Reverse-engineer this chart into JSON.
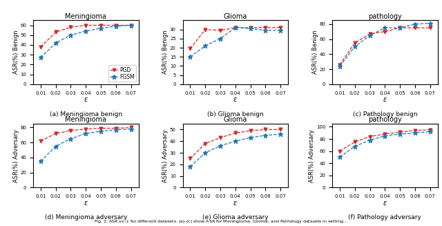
{
  "epsilon": [
    0.01,
    0.02,
    0.03,
    0.04,
    0.05,
    0.06,
    0.07
  ],
  "plots": {
    "meningioma_benign": {
      "title": "Meningioma",
      "ylabel": "ASR(%) Benign",
      "caption": "(a) Meningioma benign",
      "pgd": [
        38,
        53,
        58,
        60,
        60,
        60,
        60
      ],
      "fgsm": [
        27,
        42,
        50,
        54,
        57,
        59,
        60
      ]
    },
    "glioma_benign": {
      "title": "Glioma",
      "ylabel": "ASR(%) Benign",
      "caption": "(b) Glioma benign",
      "pgd": [
        19.5,
        30,
        29.5,
        31,
        31,
        31,
        31
      ],
      "fgsm": [
        15,
        21,
        25,
        31,
        30.5,
        29.5,
        29.5
      ]
    },
    "pathology_benign": {
      "title": "pathology",
      "ylabel": "ASR(%) Benign",
      "caption": "(c) Pathology benign",
      "pgd": [
        26,
        55,
        67,
        70,
        75,
        75,
        75
      ],
      "fgsm": [
        24,
        50,
        65,
        75,
        75,
        80,
        81
      ]
    },
    "meningioma_adversary": {
      "title": "Meningioma",
      "ylabel": "ASR(%) Adversary",
      "caption": "(d) Meningioma adversary",
      "pgd": [
        62,
        72,
        76,
        78,
        79,
        79,
        80
      ],
      "fgsm": [
        35,
        55,
        65,
        72,
        75,
        77,
        78
      ]
    },
    "glioma_adversary": {
      "title": "Glioma",
      "ylabel": "ASR(%) Adversary",
      "caption": "(e) Glioma adversary",
      "pgd": [
        25,
        38,
        43,
        47,
        49,
        50,
        50
      ],
      "fgsm": [
        18,
        30,
        36,
        40,
        43,
        45,
        46
      ]
    },
    "pathology_adversary": {
      "title": "pathology",
      "ylabel": "ASR(%) Adversary",
      "caption": "(f) Pathology adversary",
      "pgd": [
        60,
        75,
        84,
        88,
        91,
        94,
        95
      ],
      "fgsm": [
        50,
        68,
        78,
        85,
        88,
        90,
        92
      ]
    }
  },
  "pgd_color": "#d62728",
  "fgsm_color": "#1f77b4",
  "ylims": {
    "meningioma_benign": [
      0,
      65
    ],
    "glioma_benign": [
      0,
      35
    ],
    "pathology_benign": [
      0,
      85
    ],
    "meningioma_adversary": [
      0,
      85
    ],
    "glioma_adversary": [
      0,
      55
    ],
    "pathology_adversary": [
      0,
      105
    ]
  },
  "yticks": {
    "meningioma_benign": [
      0,
      10,
      20,
      30,
      40,
      50,
      60
    ],
    "glioma_benign": [
      0,
      5,
      10,
      15,
      20,
      25,
      30
    ],
    "pathology_benign": [
      0,
      20,
      40,
      60,
      80
    ],
    "meningioma_adversary": [
      0,
      20,
      40,
      60,
      80
    ],
    "glioma_adversary": [
      0,
      10,
      20,
      30,
      40,
      50
    ],
    "pathology_adversary": [
      0,
      20,
      40,
      60,
      80,
      100
    ]
  },
  "fig_description": "Fig. 2: ASR vs. ε for different datasets. (a)-(c) show ASR for Meningioma, Glioma, and Pathology datasets in setting..."
}
